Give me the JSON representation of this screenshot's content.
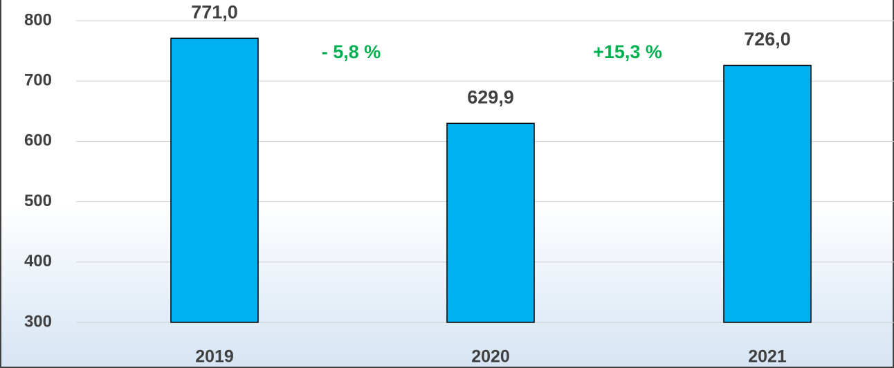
{
  "chart_data": {
    "type": "bar",
    "categories": [
      "2019",
      "2020",
      "2021"
    ],
    "values": [
      771,
      629.9,
      726
    ],
    "value_labels": [
      "771,0",
      "629,9",
      "726,0"
    ],
    "color": "#00b0f0",
    "ylim": [
      300,
      800
    ],
    "yticks": [
      300,
      400,
      500,
      600,
      700,
      800
    ],
    "grid": true,
    "annotations": [
      "- 5,8 %",
      "+15,3 %"
    ],
    "annotation_color": "#00b050"
  }
}
